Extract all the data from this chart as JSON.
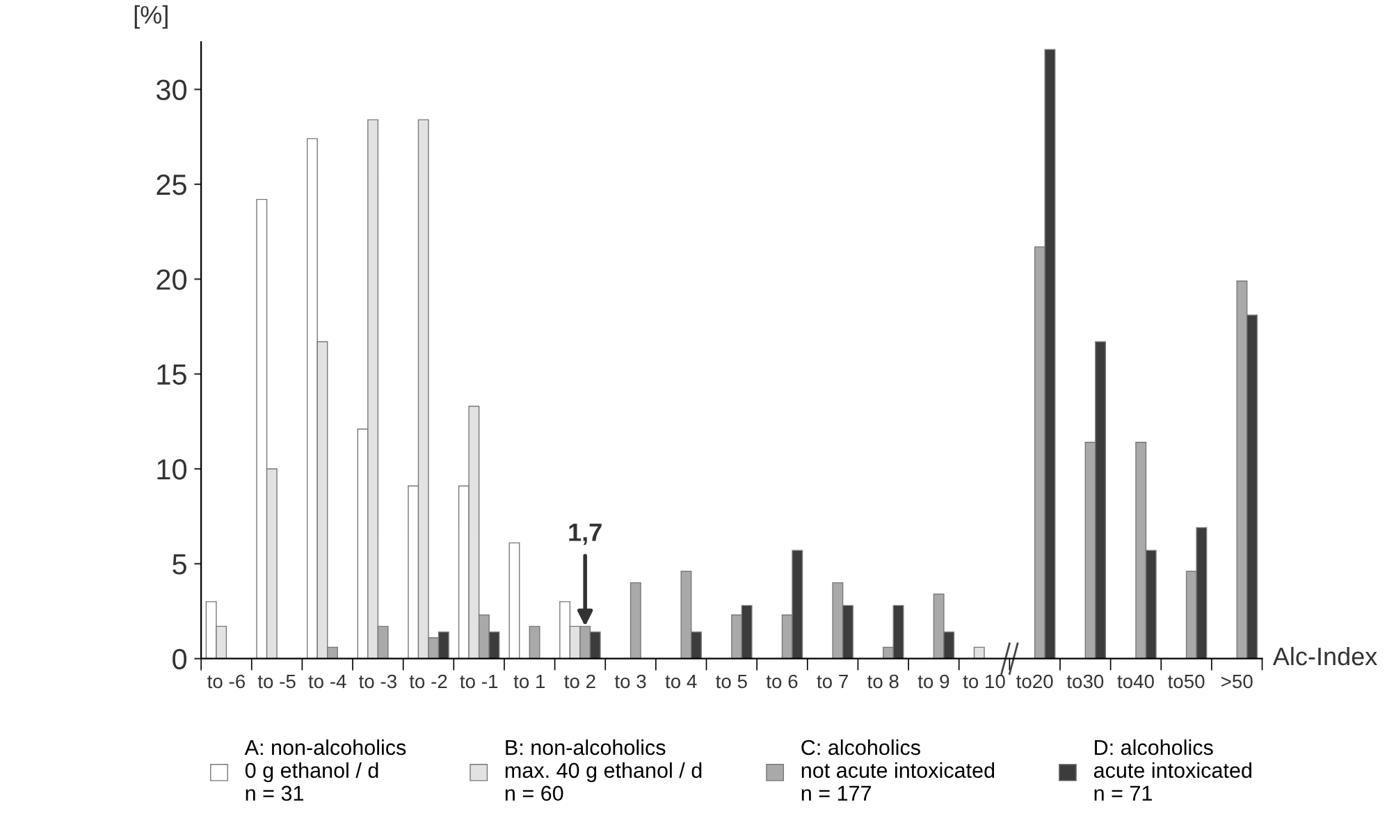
{
  "chart_data": {
    "type": "bar",
    "categories": [
      "to -6",
      "to -5",
      "to -4",
      "to -3",
      "to -2",
      "to -1",
      "to 1",
      "to 2",
      "to 3",
      "to 4",
      "to 5",
      "to 6",
      "to 7",
      "to 8",
      "to 9",
      "to 10",
      "to20",
      "to30",
      "to40",
      "to50",
      ">50"
    ],
    "series": [
      {
        "name": "A: non-alcoholics\n0 g ethanol / d\nn = 31",
        "color": "#ffffff",
        "values": [
          3.0,
          24.2,
          27.4,
          12.1,
          9.1,
          9.1,
          6.1,
          3.0,
          null,
          null,
          null,
          null,
          null,
          null,
          null,
          null,
          null,
          null,
          null,
          null,
          null
        ]
      },
      {
        "name": "B: non-alcoholics\nmax. 40 g ethanol / d\nn = 60",
        "color": "#e2e2e2",
        "values": [
          1.7,
          10.0,
          16.7,
          28.4,
          28.4,
          13.3,
          null,
          1.7,
          null,
          null,
          null,
          null,
          null,
          null,
          null,
          0.6,
          null,
          null,
          null,
          null,
          null
        ]
      },
      {
        "name": "C: alcoholics\nnot acute intoxicated\nn = 177",
        "color": "#a9a9a9",
        "values": [
          null,
          null,
          0.6,
          1.7,
          1.1,
          2.3,
          1.7,
          1.7,
          4.0,
          4.6,
          2.3,
          2.3,
          4.0,
          0.6,
          3.4,
          null,
          21.7,
          11.4,
          11.4,
          4.6,
          19.9
        ]
      },
      {
        "name": "D: alcoholics\nacute intoxicated\nn = 71",
        "color": "#3c3c3c",
        "values": [
          null,
          null,
          null,
          null,
          1.4,
          1.4,
          null,
          1.4,
          null,
          1.4,
          2.8,
          5.7,
          2.8,
          2.8,
          1.4,
          null,
          32.1,
          16.7,
          5.7,
          6.9,
          18.1
        ]
      }
    ],
    "ylabel": "[%]",
    "xlabel": "Alc-Index",
    "ylim": [
      0,
      32.5
    ],
    "yticks": [
      0,
      5,
      10,
      15,
      20,
      25,
      30
    ],
    "annotations": [
      {
        "text": "1,7",
        "x": "to 2",
        "y": 1.7
      }
    ],
    "legend": "bottom",
    "grid": false
  }
}
